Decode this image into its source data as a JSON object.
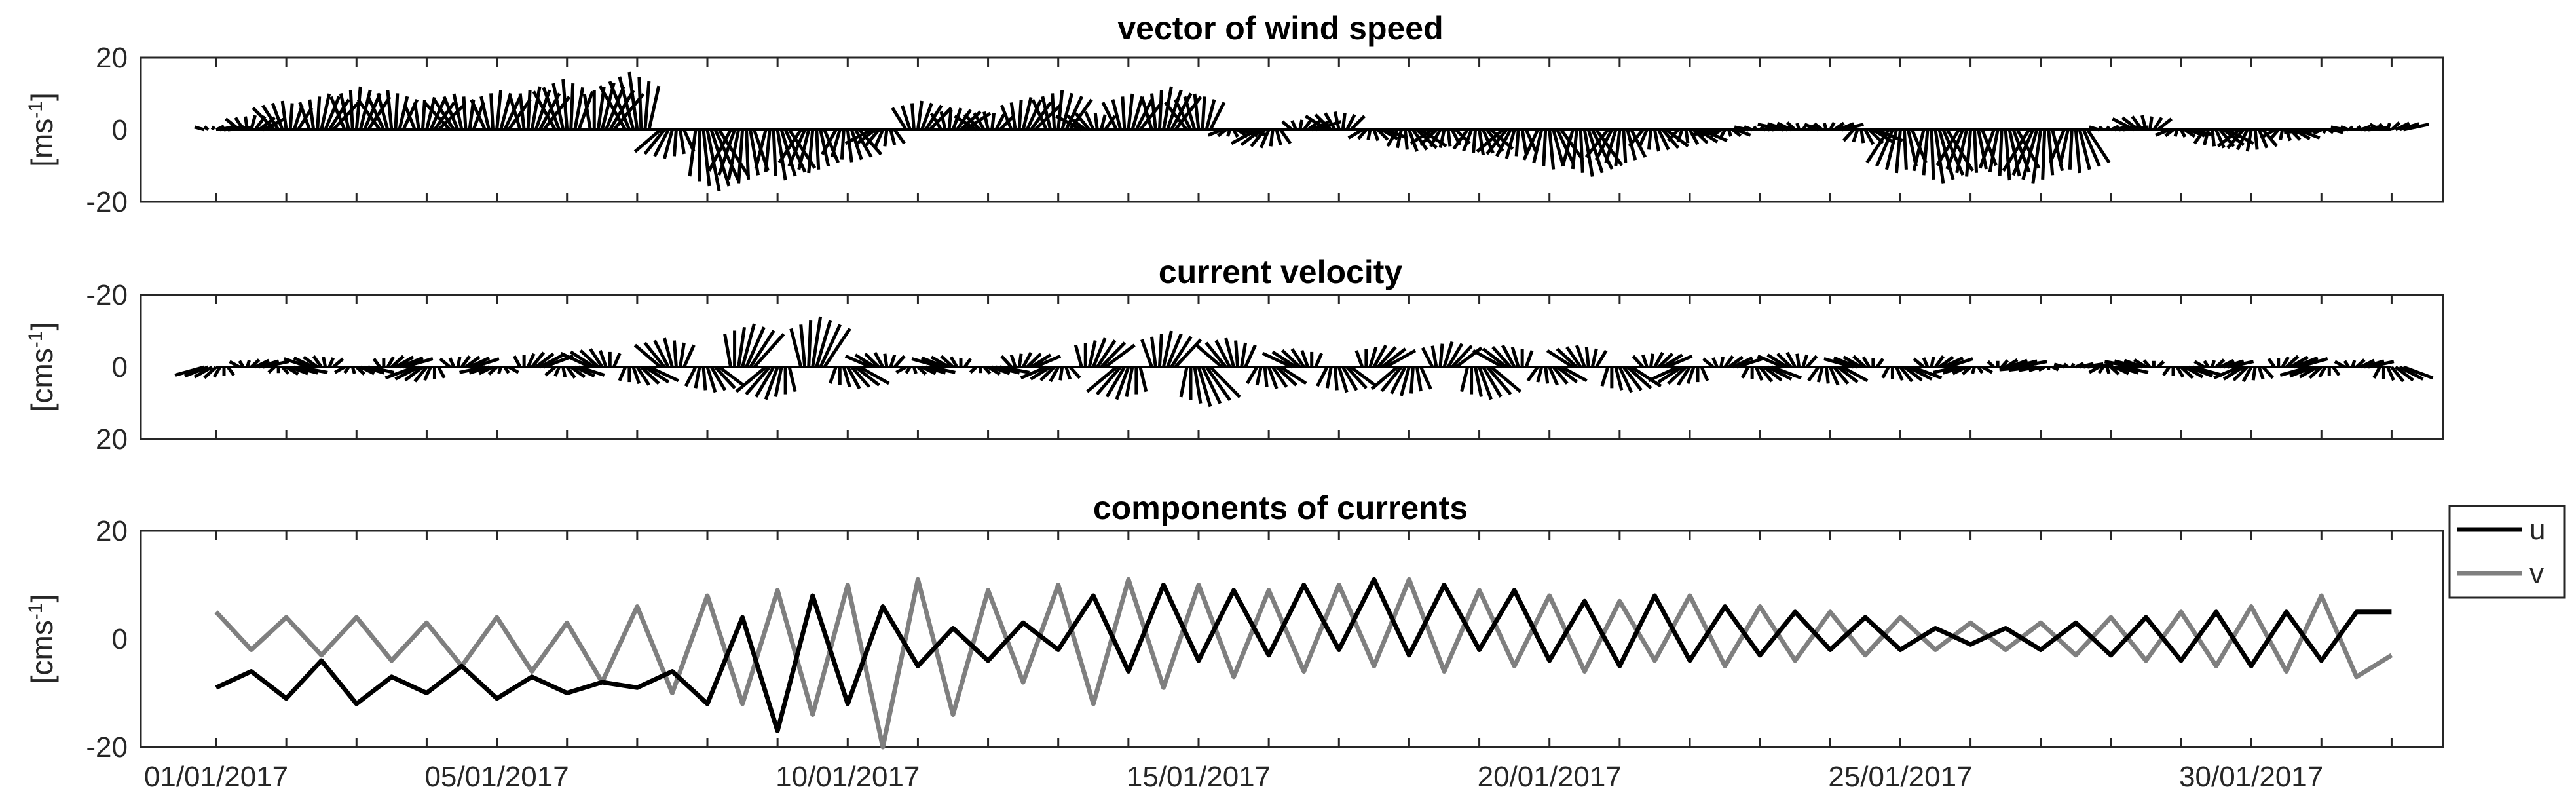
{
  "chart_data": [
    {
      "type": "quiver",
      "title": "vector of wind speed",
      "ylabel": "[ms-1]",
      "ylabel_base": "[ms",
      "ylabel_exp": "-1",
      "ylabel_close": "]",
      "ylim": [
        -20,
        20
      ],
      "yticks": [
        "20",
        "0",
        "-20"
      ],
      "xlim_days": [
        0,
        31.5
      ],
      "color": "#000000",
      "stick_days": [
        0,
        0.5,
        1,
        1.5,
        2,
        2.5,
        3,
        3.5,
        4,
        4.5,
        5,
        5.5,
        6,
        6.5,
        7,
        7.5,
        8,
        8.5,
        9,
        9.5,
        10,
        10.5,
        11,
        11.5,
        12,
        12.5,
        13,
        13.5,
        14,
        14.5,
        15,
        15.5,
        16,
        16.5,
        17,
        17.5,
        18,
        18.5,
        19,
        19.5,
        20,
        20.5,
        21,
        21.5,
        22,
        22.5,
        23,
        23.5,
        24,
        24.5,
        25,
        25.5,
        26,
        26.5,
        27,
        27.5,
        28,
        28.5,
        29,
        29.5,
        30,
        30.5,
        31
      ],
      "v": [
        1,
        4,
        8,
        10,
        12,
        11,
        9,
        10,
        11,
        12,
        14,
        13,
        16,
        -8,
        -17,
        -15,
        -14,
        -12,
        -9,
        -5,
        8,
        6,
        5,
        9,
        11,
        5,
        10,
        12,
        10,
        -2,
        -5,
        3,
        5,
        -3,
        -6,
        -5,
        -7,
        -8,
        -11,
        -13,
        -10,
        -6,
        -4,
        -2,
        1,
        2,
        2,
        -4,
        -12,
        -15,
        -13,
        -14,
        -15,
        -12,
        1,
        4,
        -2,
        -5,
        -6,
        -3,
        -1,
        1,
        2
      ],
      "u": [
        2,
        1,
        -1,
        2,
        1,
        -1,
        2,
        -2,
        1,
        2,
        -1,
        3,
        -2,
        -2,
        3,
        -1,
        2,
        -1,
        1,
        -2,
        1,
        2,
        -1,
        2,
        1,
        -2,
        1,
        2,
        -1,
        1,
        -2,
        2,
        -1,
        1,
        2,
        -1,
        1,
        -2,
        1,
        2,
        -1,
        1,
        2,
        -1,
        1,
        -2,
        1,
        2,
        -1,
        2,
        -1,
        1,
        -2,
        1,
        2,
        -1,
        1,
        2,
        -1,
        1,
        -2,
        1,
        2
      ]
    },
    {
      "type": "quiver",
      "title": "current velocity",
      "ylabel": "[cms-1]",
      "ylabel_base": "[cms",
      "ylabel_exp": "-1",
      "ylabel_close": "]",
      "ylim": [
        -20,
        20
      ],
      "y_reversed": true,
      "yticks": [
        "-20",
        "0",
        "20"
      ],
      "xlim_days": [
        0,
        31.5
      ],
      "color": "#000000",
      "stick_days": [
        0,
        0.5,
        1,
        1.5,
        2,
        2.5,
        3,
        3.5,
        4,
        4.5,
        5,
        5.5,
        6,
        6.5,
        7,
        7.5,
        8,
        8.5,
        9,
        9.5,
        10,
        10.5,
        11,
        11.5,
        12,
        12.5,
        13,
        13.5,
        14,
        14.5,
        15,
        15.5,
        16,
        16.5,
        17,
        17.5,
        18,
        18.5,
        19,
        19.5,
        20,
        20.5,
        21,
        21.5,
        22,
        22.5,
        23,
        23.5,
        24,
        24.5,
        25,
        25.5,
        26,
        26.5,
        27,
        27.5,
        28,
        28.5,
        29,
        29.5,
        30,
        30.5,
        31
      ],
      "v": [
        3,
        -2,
        2,
        -3,
        2,
        -3,
        4,
        -3,
        2,
        -4,
        3,
        -5,
        5,
        -8,
        7,
        -12,
        9,
        -14,
        6,
        -4,
        2,
        -3,
        2,
        -4,
        4,
        -8,
        9,
        -10,
        11,
        -8,
        6,
        -5,
        7,
        -6,
        8,
        -7,
        9,
        -6,
        5,
        -6,
        7,
        -4,
        5,
        -3,
        4,
        -4,
        5,
        -3,
        4,
        -3,
        2,
        -2,
        1,
        -1,
        2,
        -2,
        3,
        -2,
        4,
        -3,
        3,
        -2,
        4
      ],
      "u": [
        -3,
        2,
        3,
        -2,
        2,
        3,
        -3,
        2,
        -2,
        3,
        2,
        -3,
        3,
        -2,
        2,
        3,
        -3,
        2,
        3,
        -2,
        2,
        -3,
        3,
        2,
        -2,
        3,
        -3,
        2,
        3,
        -2,
        2,
        -3,
        2,
        3,
        -2,
        2,
        3,
        -3,
        2,
        -2,
        3,
        2,
        -3,
        2,
        3,
        -2,
        2,
        -3,
        3,
        2,
        -2,
        3,
        -3,
        2,
        2,
        -3,
        3,
        2,
        -2,
        3,
        -3,
        2,
        3
      ]
    },
    {
      "type": "line",
      "title": "components of currents",
      "ylabel": "[cms-1]",
      "ylabel_base": "[cms",
      "ylabel_exp": "-1",
      "ylabel_close": "]",
      "ylim": [
        -20,
        20
      ],
      "yticks": [
        "20",
        "0",
        "-20"
      ],
      "xlim_days": [
        0,
        31.5
      ],
      "legend": "outside-right",
      "x_days": [
        0,
        0.5,
        1,
        1.5,
        2,
        2.5,
        3,
        3.5,
        4,
        4.5,
        5,
        5.5,
        6,
        6.5,
        7,
        7.5,
        8,
        8.5,
        9,
        9.5,
        10,
        10.5,
        11,
        11.5,
        12,
        12.5,
        13,
        13.5,
        14,
        14.5,
        15,
        15.5,
        16,
        16.5,
        17,
        17.5,
        18,
        18.5,
        19,
        19.5,
        20,
        20.5,
        21,
        21.5,
        22,
        22.5,
        23,
        23.5,
        24,
        24.5,
        25,
        25.5,
        26,
        26.5,
        27,
        27.5,
        28,
        28.5,
        29,
        29.5,
        30,
        30.5,
        31
      ],
      "series": [
        {
          "name": "u",
          "color": "#000000",
          "values": [
            -9,
            -6,
            -11,
            -4,
            -12,
            -7,
            -10,
            -5,
            -11,
            -7,
            -10,
            -8,
            -9,
            -6,
            -12,
            4,
            -17,
            8,
            -12,
            6,
            -5,
            2,
            -4,
            3,
            -2,
            8,
            -6,
            10,
            -4,
            9,
            -3,
            10,
            -2,
            11,
            -3,
            10,
            -2,
            9,
            -4,
            7,
            -5,
            8,
            -4,
            6,
            -3,
            5,
            -2,
            4,
            -2,
            2,
            -1,
            2,
            -2,
            3,
            -3,
            4,
            -4,
            5,
            -5,
            5,
            -4,
            5,
            5
          ]
        },
        {
          "name": "v",
          "color": "#7f7f7f",
          "values": [
            5,
            -2,
            4,
            -3,
            4,
            -4,
            3,
            -5,
            4,
            -6,
            3,
            -8,
            6,
            -10,
            8,
            -12,
            9,
            -14,
            10,
            -20,
            11,
            -14,
            9,
            -8,
            10,
            -12,
            11,
            -9,
            10,
            -7,
            9,
            -6,
            10,
            -5,
            11,
            -6,
            9,
            -5,
            8,
            -6,
            7,
            -4,
            8,
            -5,
            6,
            -4,
            5,
            -3,
            4,
            -2,
            3,
            -2,
            3,
            -3,
            4,
            -4,
            5,
            -5,
            6,
            -6,
            8,
            -7,
            -3
          ]
        }
      ]
    }
  ],
  "xaxis": {
    "start_label": "01/01/2017",
    "tick_labels": [
      {
        "day": 0,
        "label": "01/01/2017"
      },
      {
        "day": 4,
        "label": "05/01/2017"
      },
      {
        "day": 9,
        "label": "10/01/2017"
      },
      {
        "day": 14,
        "label": "15/01/2017"
      },
      {
        "day": 19,
        "label": "20/01/2017"
      },
      {
        "day": 24,
        "label": "25/01/2017"
      },
      {
        "day": 29,
        "label": "30/01/2017"
      }
    ]
  }
}
